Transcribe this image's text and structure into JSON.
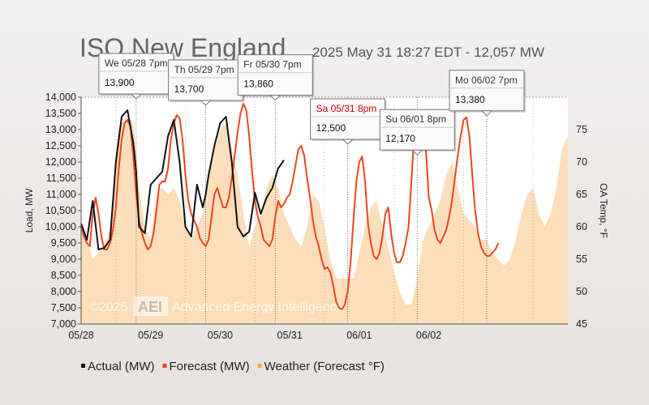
{
  "chart_data": {
    "type": "line",
    "title": "ISO New England",
    "subtitle": "2025 May 31 18:27 EDT - 12,057 MW",
    "ylabel": "Load, MW",
    "y2label": "OA Temp, °F",
    "ylim": [
      7000,
      14000
    ],
    "y2lim": [
      45,
      80
    ],
    "xlim": [
      0,
      168
    ],
    "yticks": [
      "7,000",
      "7,500",
      "8,000",
      "8,500",
      "9,000",
      "9,500",
      "10,000",
      "10,500",
      "11,000",
      "11,500",
      "12,000",
      "12,500",
      "13,000",
      "13,500",
      "14,000"
    ],
    "y2ticks": [
      "45",
      "50",
      "55",
      "60",
      "65",
      "70",
      "75"
    ],
    "xticks": [
      {
        "x": 0,
        "label": "05/28"
      },
      {
        "x": 24,
        "label": "05/29"
      },
      {
        "x": 48,
        "label": "05/30"
      },
      {
        "x": 72,
        "label": "05/31"
      },
      {
        "x": 96,
        "label": "06/01"
      },
      {
        "x": 120,
        "label": "06/02"
      }
    ],
    "day_dividers": [
      12,
      36,
      60,
      84,
      108,
      132,
      156
    ],
    "peak_dividers": [
      19,
      43,
      67,
      92,
      116,
      140
    ],
    "legend": [
      {
        "label": "Actual (MW)",
        "color": "#111111"
      },
      {
        "label": "Forecast (MW)",
        "color": "#ee4422"
      },
      {
        "label": "Weather (Forecast °F)",
        "color": "#f6aa40"
      }
    ],
    "watermark": {
      "year": "©2025",
      "logo": "AEI",
      "name": "Advanced Energy Intelligence"
    },
    "callouts": [
      {
        "x": 19,
        "y": 13900,
        "date": "We 05/28 7pm",
        "value": "13,900",
        "color": "#333333"
      },
      {
        "x": 43,
        "y": 13700,
        "date": "Th 05/29 7pm",
        "value": "13,700",
        "color": "#333333"
      },
      {
        "x": 67,
        "y": 13860,
        "date": "Fr 05/30 7pm",
        "value": "13,860",
        "color": "#333333"
      },
      {
        "x": 92,
        "y": 12500,
        "date": "Sa 05/31 8pm",
        "value": "12,500",
        "color": "#cc0000"
      },
      {
        "x": 116,
        "y": 12170,
        "date": "Su 06/01 8pm",
        "value": "12,170",
        "color": "#333333"
      },
      {
        "x": 140,
        "y": 13380,
        "date": "Mo 06/02 7pm",
        "value": "13,380",
        "color": "#333333"
      }
    ],
    "series": [
      {
        "name": "Actual (MW)",
        "x": [
          0,
          2,
          4,
          6,
          8,
          10,
          12,
          14,
          16,
          18,
          19,
          20,
          22,
          24,
          26,
          28,
          30,
          32,
          34,
          36,
          38,
          40,
          42,
          43,
          44,
          46,
          48,
          50,
          52,
          54,
          56,
          58,
          60,
          62,
          64,
          66,
          67,
          68,
          70,
          72,
          74,
          76,
          78,
          80,
          82,
          84,
          86,
          88,
          90
        ],
        "y": [
          10100,
          9600,
          10800,
          9300,
          9350,
          9600,
          12000,
          13400,
          13600,
          12600,
          11700,
          10000,
          9800,
          11300,
          11500,
          11700,
          12800,
          13300,
          12000,
          10000,
          9700,
          11300,
          10600,
          11000,
          11600,
          12500,
          13200,
          13400,
          12000,
          10000,
          9700,
          9850,
          11050,
          10400,
          10900,
          11200,
          11500,
          11800,
          12057,
          null,
          null,
          null,
          null,
          null,
          null,
          null,
          null,
          null,
          null
        ]
      },
      {
        "name": "Forecast (MW)",
        "x": [
          0,
          1,
          2,
          3,
          4,
          5,
          6,
          7,
          8,
          9,
          10,
          11,
          12,
          13,
          14,
          15,
          16,
          17,
          18,
          19,
          20,
          21,
          22,
          23,
          24,
          25,
          26,
          27,
          28,
          29,
          30,
          31,
          32,
          33,
          34,
          35,
          36,
          37,
          38,
          39,
          40,
          41,
          42,
          43,
          44,
          45,
          46,
          47,
          48,
          49,
          50,
          51,
          52,
          53,
          54,
          55,
          56,
          57,
          58,
          59,
          60,
          61,
          62,
          63,
          64,
          65,
          66,
          67,
          68,
          69,
          70,
          71,
          72,
          73,
          74,
          75,
          76,
          77,
          78,
          79,
          80,
          81,
          82,
          83,
          84,
          85,
          86,
          87,
          88,
          89,
          90,
          91,
          92,
          93,
          94,
          95,
          96,
          97,
          98,
          99,
          100,
          101,
          102,
          103,
          104,
          105,
          106,
          107,
          108,
          109,
          110,
          111,
          112,
          113,
          114,
          115,
          116,
          117,
          118,
          119,
          120,
          121,
          122,
          123,
          124,
          125,
          126,
          127,
          128,
          129,
          130,
          131,
          132,
          133,
          134,
          135,
          136,
          137,
          138,
          139,
          140,
          141,
          142,
          143,
          144
        ],
        "y": [
          10000,
          9700,
          9500,
          9400,
          10400,
          10900,
          10400,
          9700,
          9300,
          9300,
          9500,
          9900,
          10600,
          11800,
          12700,
          13200,
          13300,
          13100,
          12200,
          11000,
          10200,
          9800,
          9500,
          9300,
          9400,
          9800,
          10500,
          11300,
          11400,
          11400,
          11800,
          12700,
          13200,
          13450,
          13350,
          12700,
          11600,
          10800,
          10400,
          10200,
          10000,
          9650,
          9500,
          9400,
          9600,
          10300,
          11000,
          11200,
          10900,
          10600,
          10600,
          10900,
          11500,
          12200,
          12900,
          13500,
          13800,
          13600,
          12800,
          11700,
          10800,
          10300,
          10000,
          9600,
          9500,
          9400,
          9600,
          10300,
          10800,
          10600,
          10700,
          10900,
          11000,
          11400,
          11900,
          12400,
          12500,
          12200,
          11500,
          10900,
          10200,
          9700,
          9400,
          9000,
          8700,
          8750,
          8600,
          8200,
          7700,
          7500,
          7450,
          7600,
          8000,
          8900,
          10200,
          11400,
          12000,
          12170,
          11400,
          10100,
          9500,
          9100,
          9000,
          9200,
          9700,
          10400,
          10600,
          9800,
          9200,
          8900,
          8900,
          9100,
          9500,
          10000,
          11400,
          12900,
          13200,
          13380,
          13300,
          12400,
          10900,
          10500,
          9900,
          9600,
          9500,
          9700,
          9900,
          10300,
          10800,
          11500,
          12200,
          12800,
          13300,
          13380,
          12800,
          11600,
          10500,
          9800,
          9400,
          9200,
          9100,
          9100,
          9200,
          9300,
          9500
        ]
      },
      {
        "name": "Weather (Forecast °F)",
        "axis": "right",
        "x": [
          0,
          2,
          4,
          6,
          8,
          10,
          12,
          13,
          14,
          16,
          18,
          19,
          20,
          22,
          24,
          26,
          28,
          30,
          32,
          34,
          36,
          38,
          40,
          42,
          44,
          46,
          48,
          50,
          52,
          54,
          56,
          58,
          60,
          62,
          64,
          66,
          68,
          70,
          72,
          74,
          76,
          78,
          80,
          82,
          84,
          86,
          88,
          90,
          92,
          94,
          96,
          98,
          100,
          102,
          104,
          106,
          108,
          110,
          112,
          114,
          116,
          118,
          120,
          122,
          124,
          126,
          128,
          130,
          132,
          134,
          136,
          138,
          140,
          142,
          144,
          146,
          148,
          150,
          152,
          154,
          156,
          158,
          160,
          162,
          164,
          166,
          168
        ],
        "y": [
          61,
          58,
          55,
          56,
          57,
          60,
          72,
          75,
          76,
          77,
          76,
          72,
          66,
          60,
          58,
          65,
          66,
          65,
          66,
          64,
          60,
          58,
          60,
          62,
          68,
          72,
          75,
          76,
          72,
          68,
          62,
          57,
          60,
          62,
          66,
          68,
          66,
          62,
          60,
          58,
          57,
          60,
          65,
          64,
          60,
          55,
          52,
          52,
          52,
          52,
          56,
          60,
          63,
          64,
          60,
          57,
          53,
          50,
          48,
          48,
          52,
          58,
          60,
          62,
          64,
          68,
          70,
          66,
          62,
          61,
          60,
          58,
          58,
          56,
          55,
          54,
          55,
          58,
          62,
          65,
          66,
          62,
          60,
          62,
          66,
          72,
          74
        ]
      }
    ]
  }
}
